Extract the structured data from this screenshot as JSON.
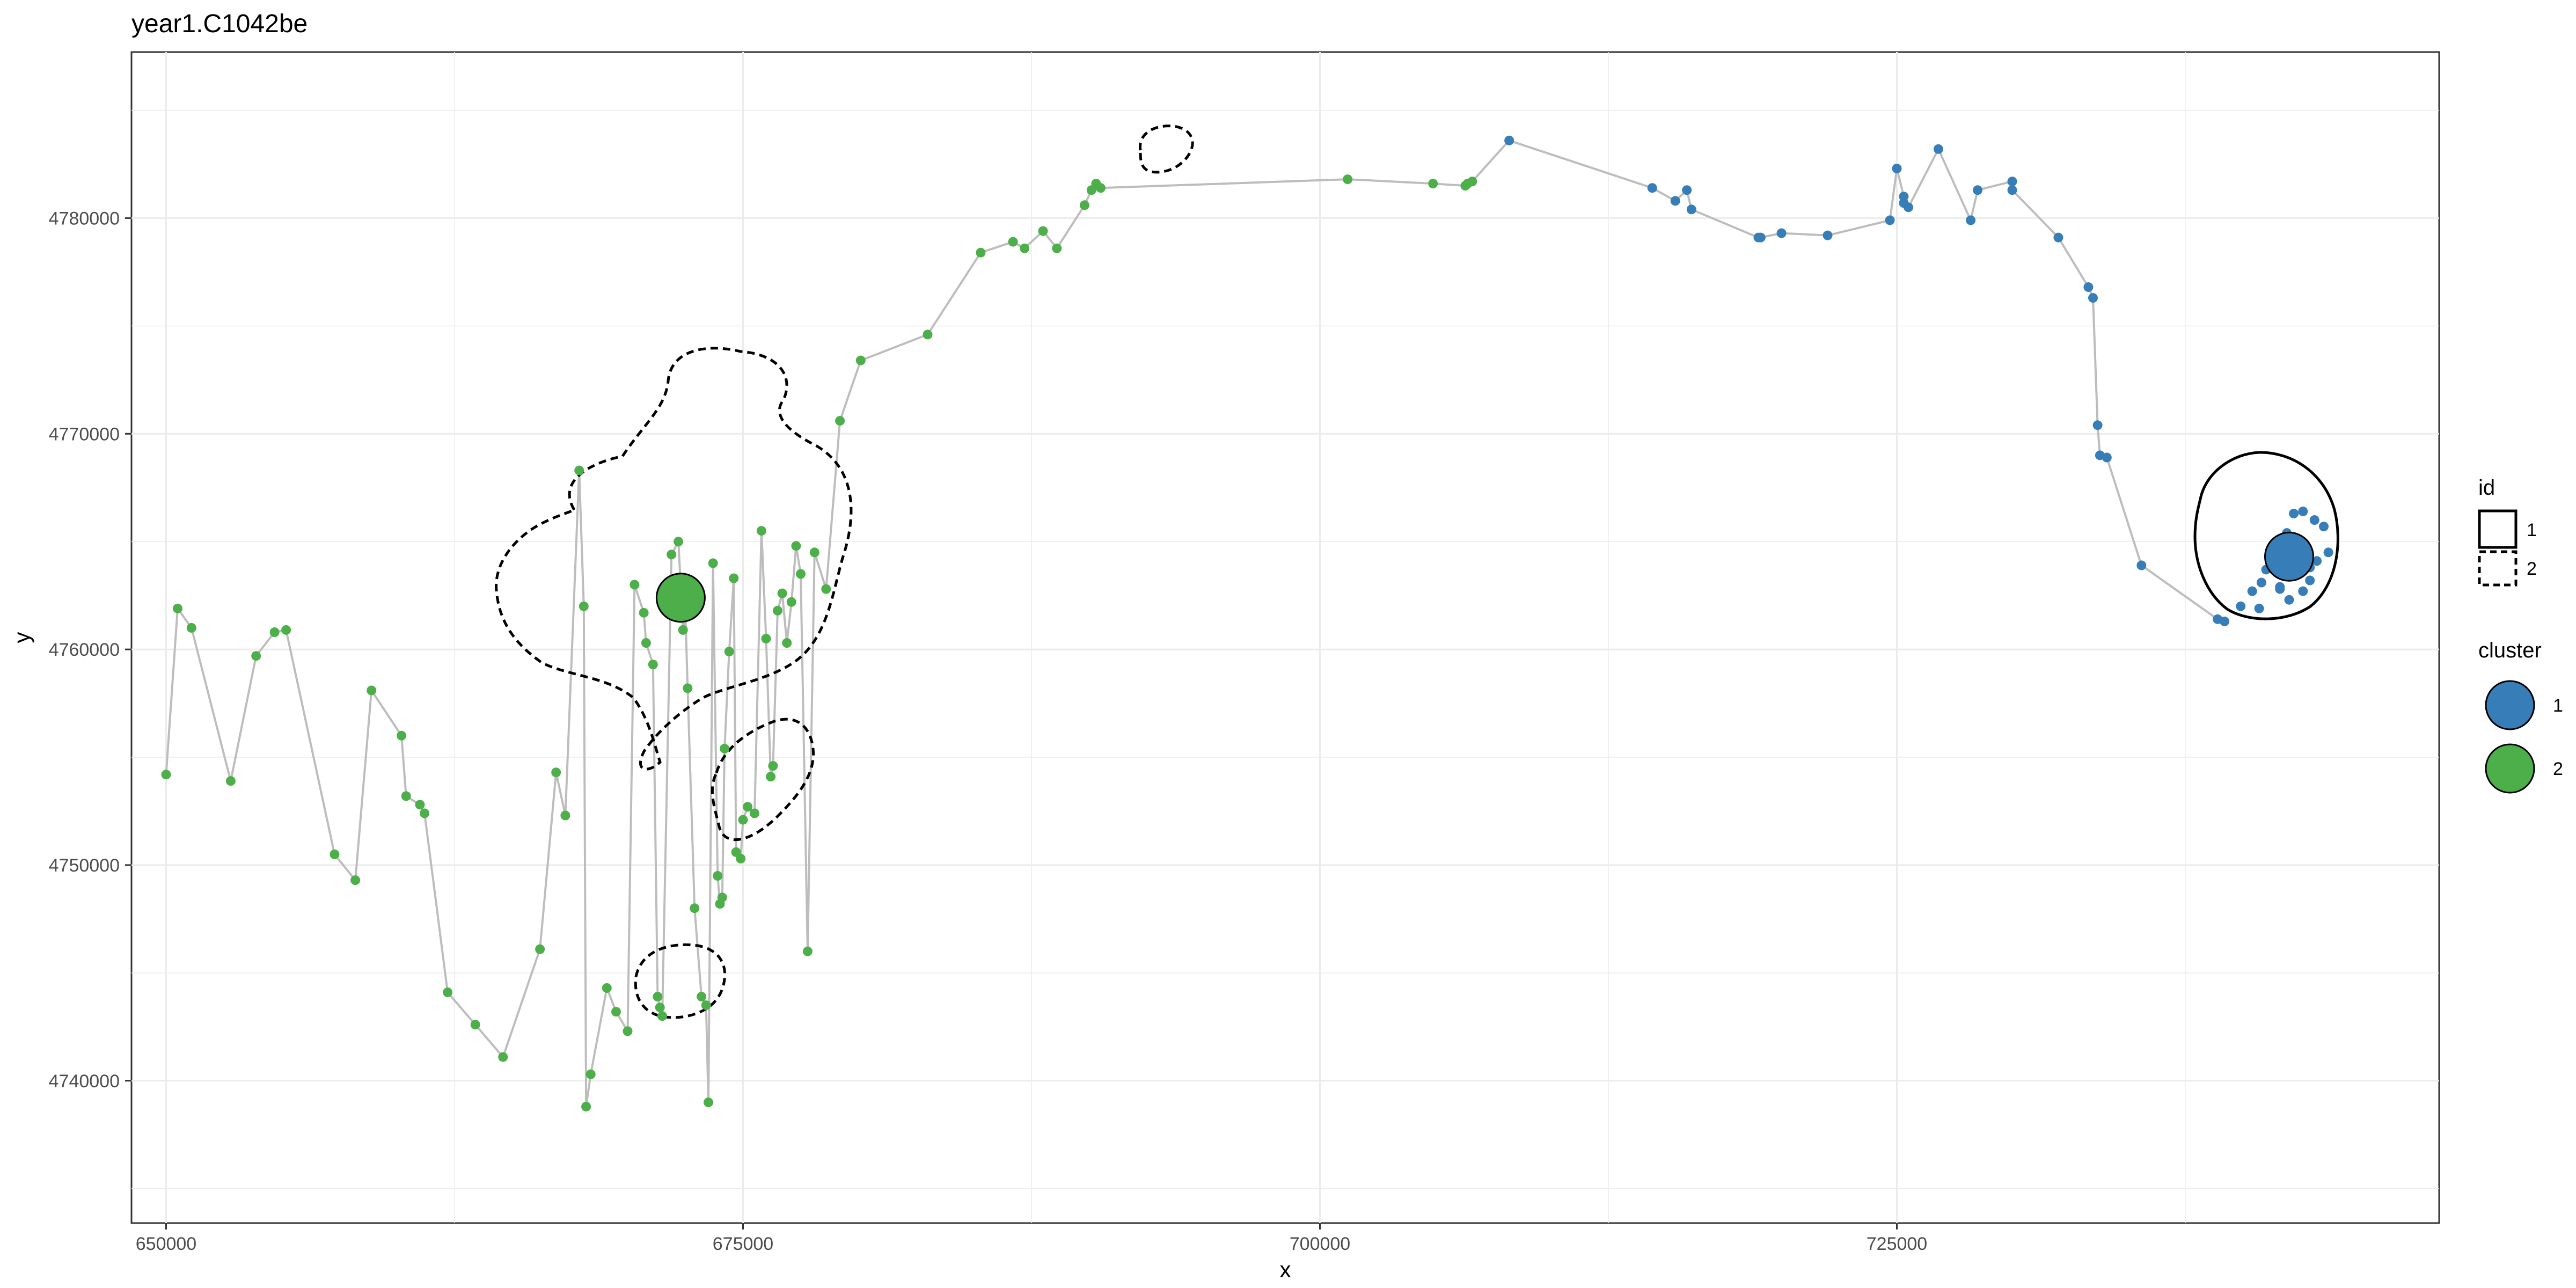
{
  "chart_data": {
    "type": "scatter",
    "title": "year1.C1042be",
    "xlabel": "x",
    "ylabel": "y",
    "xlim": [
      648500,
      748500
    ],
    "ylim": [
      4733400,
      4787700
    ],
    "grid": true,
    "x_ticks": [
      650000,
      675000,
      700000,
      725000
    ],
    "x_tick_labels": [
      "650000",
      "675000",
      "700000",
      "725000"
    ],
    "y_ticks": [
      4740000,
      4750000,
      4760000,
      4770000,
      4780000
    ],
    "y_tick_labels": [
      "4740000",
      "4750000",
      "4760000",
      "4770000",
      "4780000"
    ],
    "colors": {
      "cluster_1": "#377eb8",
      "cluster_2": "#4daf4a",
      "path": "#bdbdbd",
      "grid": "#ebebeb"
    },
    "legends": [
      {
        "title": "id",
        "position": "right",
        "entries": [
          {
            "label": "1",
            "linetype": "solid"
          },
          {
            "label": "2",
            "linetype": "dashed"
          }
        ]
      },
      {
        "title": "cluster",
        "position": "right",
        "entries": [
          {
            "label": "1",
            "color": "#377eb8"
          },
          {
            "label": "2",
            "color": "#4daf4a"
          }
        ]
      }
    ],
    "series": [
      {
        "name": "1",
        "color": "#377eb8",
        "x": [
          708200,
          714400,
          715400,
          715900,
          716100,
          719000,
          719100,
          720000,
          722000,
          724700,
          725000,
          725300,
          725300,
          725500,
          726800,
          728200,
          728500,
          730000,
          730000,
          732000,
          733300,
          733500,
          733700,
          733800,
          734100,
          735600,
          738900,
          739200,
          739900,
          740400,
          740800,
          741000,
          741300,
          741600,
          741800,
          742000,
          742300,
          742600,
          742900,
          743200,
          743500,
          743700,
          742200,
          742600,
          743100,
          741900,
          742000,
          740700,
          741600,
          742900
        ],
        "y": [
          4783600,
          4781400,
          4780800,
          4781300,
          4780400,
          4779100,
          4779100,
          4779300,
          4779200,
          4779900,
          4782300,
          4781000,
          4780700,
          4780500,
          4783200,
          4779900,
          4781300,
          4781700,
          4781300,
          4779100,
          4776800,
          4776300,
          4770400,
          4769000,
          4768900,
          4763900,
          4761400,
          4761300,
          4762000,
          4762700,
          4763100,
          4763700,
          4764300,
          4762900,
          4763500,
          4765100,
          4764600,
          4762700,
          4763200,
          4764100,
          4765700,
          4764500,
          4766300,
          4766400,
          4766000,
          4765400,
          4762300,
          4761900,
          4762800,
          4763800
        ]
      },
      {
        "name": "2",
        "color": "#4daf4a",
        "x": [
          650000,
          650500,
          651100,
          652800,
          653900,
          654700,
          655200,
          657300,
          658200,
          658900,
          660200,
          660400,
          661000,
          661200,
          662200,
          663400,
          664600,
          666200,
          666900,
          667300,
          667900,
          668100,
          668200,
          668400,
          669100,
          669500,
          670000,
          670300,
          670700,
          670800,
          671100,
          671300,
          671400,
          671500,
          671900,
          672200,
          672400,
          672500,
          672600,
          672900,
          673200,
          673400,
          673500,
          673700,
          673900,
          674000,
          674100,
          674200,
          674400,
          674600,
          674700,
          674900,
          675000,
          675200,
          675500,
          675800,
          676000,
          676200,
          676300,
          676500,
          676700,
          676900,
          677100,
          677300,
          677500,
          677800,
          678100,
          678600,
          679200,
          680100,
          683000,
          685300,
          686700,
          687200,
          688000,
          688600,
          689800,
          690100,
          690300,
          690500,
          701200,
          704900,
          706300,
          706400,
          706600
        ],
        "y": [
          4754200,
          4761900,
          4761000,
          4753900,
          4759700,
          4760800,
          4760900,
          4750500,
          4749300,
          4758100,
          4756000,
          4753200,
          4752800,
          4752400,
          4744100,
          4742600,
          4741100,
          4746100,
          4754300,
          4752300,
          4768300,
          4762000,
          4738800,
          4740300,
          4744300,
          4743200,
          4742300,
          4763000,
          4761700,
          4760300,
          4759300,
          4743900,
          4743400,
          4743000,
          4764400,
          4765000,
          4760900,
          4761800,
          4758200,
          4748000,
          4743900,
          4743500,
          4739000,
          4764000,
          4749500,
          4748200,
          4748500,
          4755400,
          4759900,
          4763300,
          4750600,
          4750300,
          4752100,
          4752700,
          4752400,
          4765500,
          4760500,
          4754100,
          4754600,
          4761800,
          4762600,
          4760300,
          4762200,
          4764800,
          4763500,
          4746000,
          4764500,
          4762800,
          4770600,
          4773400,
          4774600,
          4778400,
          4778900,
          4778600,
          4779400,
          4778600,
          4780600,
          4781300,
          4781600,
          4781400,
          4781800,
          4781600,
          4781500,
          4781600,
          4781700
        ]
      }
    ],
    "centroids": [
      {
        "cluster": "1",
        "x": 742000,
        "y": 4764300
      },
      {
        "cluster": "2",
        "x": 672300,
        "y": 4762400
      }
    ],
    "path_x": [
      650000,
      650500,
      651100,
      652800,
      653900,
      654700,
      655200,
      657300,
      658200,
      658900,
      660200,
      660400,
      661000,
      661200,
      662200,
      663400,
      664600,
      666200,
      666900,
      667300,
      667900,
      668100,
      668200,
      668400,
      669100,
      669500,
      670000,
      670300,
      670700,
      670800,
      671100,
      671300,
      671400,
      671500,
      671900,
      672200,
      672400,
      672500,
      672600,
      672900,
      673200,
      673400,
      673500,
      673700,
      673900,
      674000,
      674100,
      674200,
      674400,
      674600,
      674700,
      674900,
      675000,
      675200,
      675500,
      675800,
      676000,
      676200,
      676300,
      676500,
      676700,
      676900,
      677100,
      677300,
      677500,
      677800,
      678100,
      678600,
      679200,
      680100,
      683000,
      685300,
      686700,
      687200,
      688000,
      688600,
      689800,
      690100,
      690300,
      690500,
      701200,
      704900,
      706300,
      706400,
      706600,
      708200,
      714400,
      715400,
      715900,
      716100,
      719000,
      719100,
      720000,
      722000,
      724700,
      725000,
      725300,
      725300,
      725500,
      726800,
      728200,
      728500,
      730000,
      730000,
      732000,
      733300,
      733500,
      733700,
      733800,
      734100,
      735600,
      738900,
      739200
    ],
    "path_y": [
      4754200,
      4761900,
      4761000,
      4753900,
      4759700,
      4760800,
      4760900,
      4750500,
      4749300,
      4758100,
      4756000,
      4753200,
      4752800,
      4752400,
      4744100,
      4742600,
      4741100,
      4746100,
      4754300,
      4752300,
      4768300,
      4762000,
      4738800,
      4740300,
      4744300,
      4743200,
      4742300,
      4763000,
      4761700,
      4760300,
      4759300,
      4743900,
      4743400,
      4743000,
      4764400,
      4765000,
      4760900,
      4761800,
      4758200,
      4748000,
      4743900,
      4743500,
      4739000,
      4764000,
      4749500,
      4748200,
      4748500,
      4755400,
      4759900,
      4763300,
      4750600,
      4750300,
      4752100,
      4752700,
      4752400,
      4765500,
      4760500,
      4754100,
      4754600,
      4761800,
      4762600,
      4760300,
      4762200,
      4764800,
      4763500,
      4746000,
      4764500,
      4762800,
      4770600,
      4773400,
      4774600,
      4778400,
      4778900,
      4778600,
      4779400,
      4778600,
      4780600,
      4781300,
      4781600,
      4781400,
      4781800,
      4781600,
      4781500,
      4781600,
      4781700,
      4783600,
      4781400,
      4780800,
      4781300,
      4780400,
      4779100,
      4779100,
      4779300,
      4779200,
      4779900,
      4782300,
      4781000,
      4780700,
      4780500,
      4783200,
      4779900,
      4781300,
      4781700,
      4781300,
      4779100,
      4776800,
      4776300,
      4770400,
      4769000,
      4768900,
      4763900,
      4761400,
      4761300
    ]
  }
}
